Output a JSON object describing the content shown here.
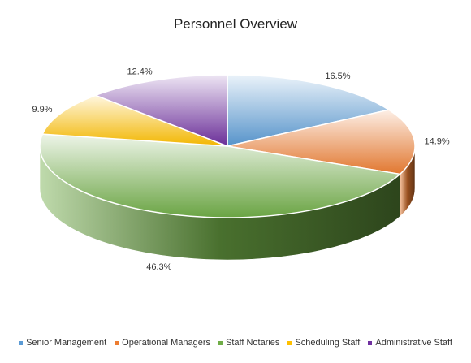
{
  "chart_data": {
    "type": "pie",
    "title": "Personnel Overview",
    "categories": [
      "Senior Management",
      "Operational Managers",
      "Staff Notaries",
      "Scheduling Staff",
      "Administrative Staff"
    ],
    "values": [
      16.5,
      14.9,
      46.3,
      9.9,
      12.4
    ],
    "data_labels": [
      "16.5%",
      "14.9%",
      "46.3%",
      "9.9%",
      "12.4%"
    ],
    "colors": [
      "#5b9bd5",
      "#ed7d31",
      "#70ad47",
      "#ffc000",
      "#7030a0"
    ],
    "style": "3d",
    "legend_position": "bottom"
  }
}
